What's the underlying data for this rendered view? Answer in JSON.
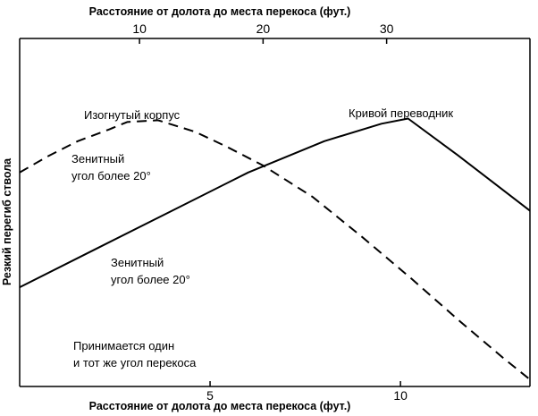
{
  "chart_data": {
    "type": "line",
    "title": "",
    "x_axes": {
      "bottom": {
        "label": "Расстояние от долота до места перекоса (фут.)",
        "ticks": [
          5,
          10
        ],
        "tick_labels": [
          "5",
          "10"
        ],
        "range": [
          0,
          13.4
        ]
      },
      "top": {
        "label": "Расстояние от долота до места перекоса (фут.)",
        "ticks": [
          10,
          20,
          30
        ],
        "tick_labels": [
          "10",
          "20",
          "30"
        ],
        "range": [
          0.3,
          41.6
        ]
      }
    },
    "ylabel": "Резкий перегиб ствола",
    "ylim": [
      0,
      1
    ],
    "grid": false,
    "series": [
      {
        "name": "Изогнутый корпус",
        "axis": "top",
        "style": "dashed",
        "color": "#000000",
        "x": [
          0.3,
          2.5,
          5.0,
          7.5,
          9.0,
          11.5,
          14.5,
          17.0,
          20.0,
          24.0,
          28.0,
          32.0,
          36.0,
          39.5,
          41.6
        ],
        "y": [
          0.615,
          0.66,
          0.705,
          0.738,
          0.76,
          0.765,
          0.732,
          0.69,
          0.635,
          0.545,
          0.43,
          0.31,
          0.185,
          0.08,
          0.02
        ]
      },
      {
        "name": "Кривой переводник",
        "axis": "bottom",
        "style": "solid",
        "color": "#000000",
        "x": [
          0,
          2,
          4,
          6,
          8,
          9.5,
          10.2,
          11.5,
          13.4
        ],
        "y": [
          0.285,
          0.395,
          0.505,
          0.615,
          0.705,
          0.755,
          0.77,
          0.665,
          0.505
        ]
      }
    ],
    "annotations": {
      "bent_housing": "Изогнутый корпус",
      "bent_sub": "Кривой переводник",
      "zenith1_line1": "Зенитный",
      "zenith1_line2": "угол  более 20°",
      "zenith2_line1": "Зенитный",
      "zenith2_line2": "угол  более 20°",
      "same_angle_line1": "Принимается один",
      "same_angle_line2": "и тот же угол  перекоса"
    }
  }
}
